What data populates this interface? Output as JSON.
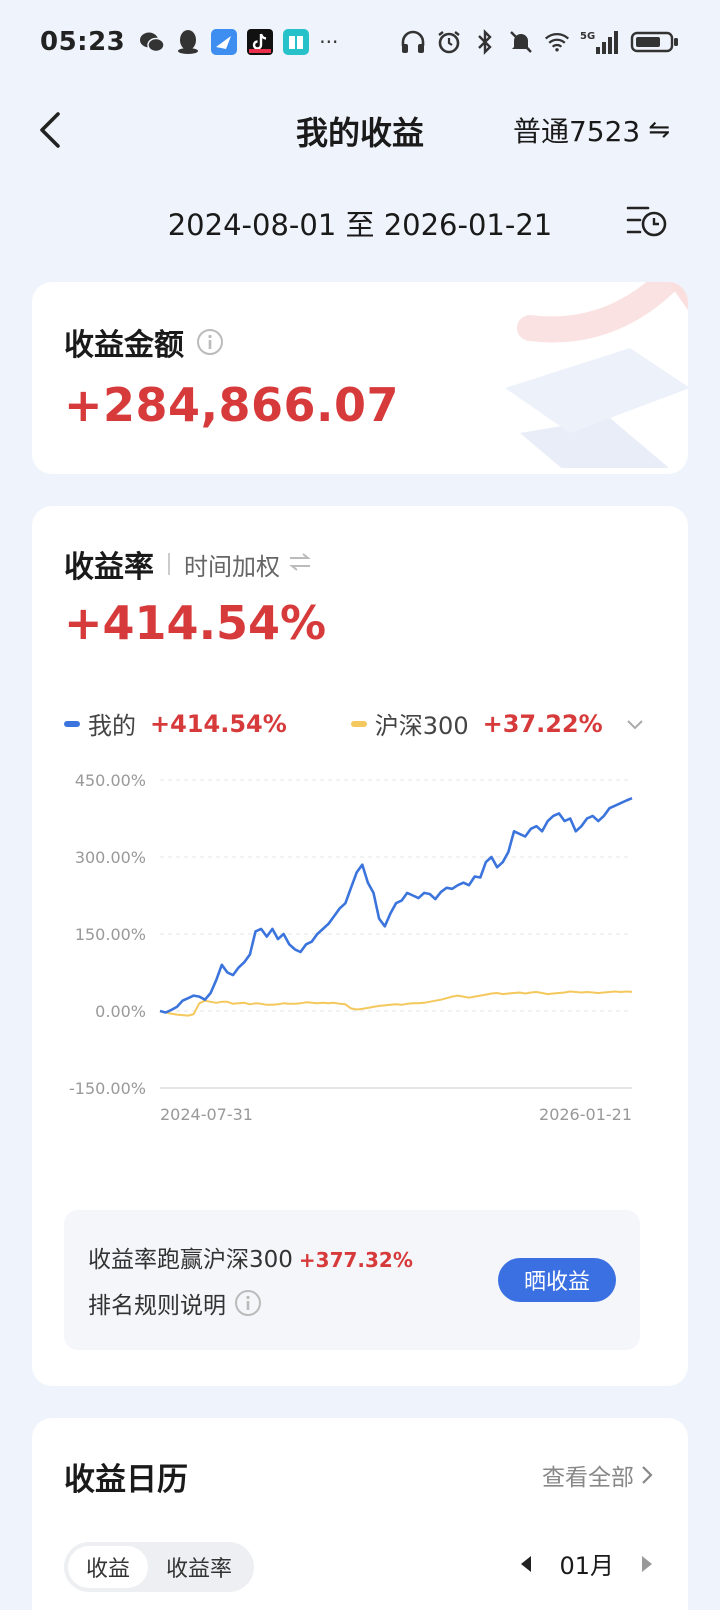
{
  "status_bar": {
    "time": "05:23",
    "more": "···",
    "left_icons": [
      "wechat-icon",
      "qq-icon",
      "feishu-icon",
      "tiktok-icon",
      "book-icon"
    ],
    "right_icons": [
      "headphones-icon",
      "alarm-icon",
      "bluetooth-icon",
      "mute-icon",
      "wifi-icon",
      "5g-signal-icon",
      "battery-icon"
    ],
    "network": "5G"
  },
  "header": {
    "title": "我的收益",
    "account": "普通7523",
    "switch_glyph": "⇋"
  },
  "date_range": "2024-08-01 至 2026-01-21",
  "amount_card": {
    "label": "收益金额",
    "value": "+284,866.07"
  },
  "rate_card": {
    "label": "收益率",
    "mode": "时间加权",
    "value": "+414.54%",
    "legend": [
      {
        "name": "我的",
        "value": "+414.54%",
        "color": "#3b74dc"
      },
      {
        "name": "沪深300",
        "value": "+37.22%",
        "color": "#f4c85c"
      }
    ],
    "comparison": {
      "text": "收益率跑赢沪深300",
      "value": "+377.32%",
      "rules": "排名规则说明",
      "share_button": "晒收益"
    }
  },
  "chart_data": {
    "type": "line",
    "x_start": "2024-07-31",
    "x_end": "2026-01-21",
    "y_ticks": [
      "450.00%",
      "300.00%",
      "150.00%",
      "0.00%",
      "-150.00%"
    ],
    "ylim": [
      -150,
      450
    ],
    "grid": true,
    "series": [
      {
        "name": "我的",
        "color": "#3b74dc",
        "values": [
          0,
          -3,
          2,
          8,
          20,
          25,
          30,
          28,
          22,
          35,
          60,
          90,
          75,
          70,
          85,
          95,
          110,
          155,
          160,
          145,
          160,
          140,
          150,
          130,
          120,
          115,
          130,
          135,
          150,
          160,
          170,
          185,
          200,
          210,
          240,
          270,
          285,
          250,
          230,
          180,
          165,
          190,
          210,
          215,
          230,
          225,
          220,
          230,
          228,
          218,
          232,
          240,
          238,
          245,
          250,
          245,
          262,
          260,
          290,
          300,
          280,
          290,
          310,
          350,
          345,
          340,
          355,
          360,
          350,
          370,
          380,
          385,
          370,
          375,
          350,
          360,
          375,
          380,
          370,
          380,
          395,
          400,
          405,
          410,
          414.54
        ]
      },
      {
        "name": "沪深300",
        "color": "#f4c85c",
        "values": [
          0,
          -3,
          -5,
          -7,
          -8,
          -9,
          -6,
          15,
          20,
          18,
          16,
          18,
          18,
          14,
          15,
          16,
          13,
          15,
          14,
          12,
          12,
          13,
          15,
          14,
          14,
          15,
          17,
          16,
          15,
          16,
          15,
          16,
          14,
          13,
          5,
          3,
          4,
          6,
          8,
          10,
          11,
          12,
          13,
          12,
          14,
          15,
          15,
          16,
          18,
          20,
          22,
          25,
          28,
          30,
          28,
          26,
          28,
          30,
          32,
          34,
          35,
          33,
          34,
          35,
          36,
          34,
          36,
          37,
          35,
          33,
          34,
          35,
          36,
          38,
          37,
          36,
          37,
          36,
          35,
          36,
          37,
          38,
          37,
          38,
          37.22
        ]
      }
    ]
  },
  "calendar_card": {
    "title": "收益日历",
    "view_all": "查看全部",
    "toggle": [
      "收益",
      "收益率"
    ],
    "month": "01月"
  }
}
